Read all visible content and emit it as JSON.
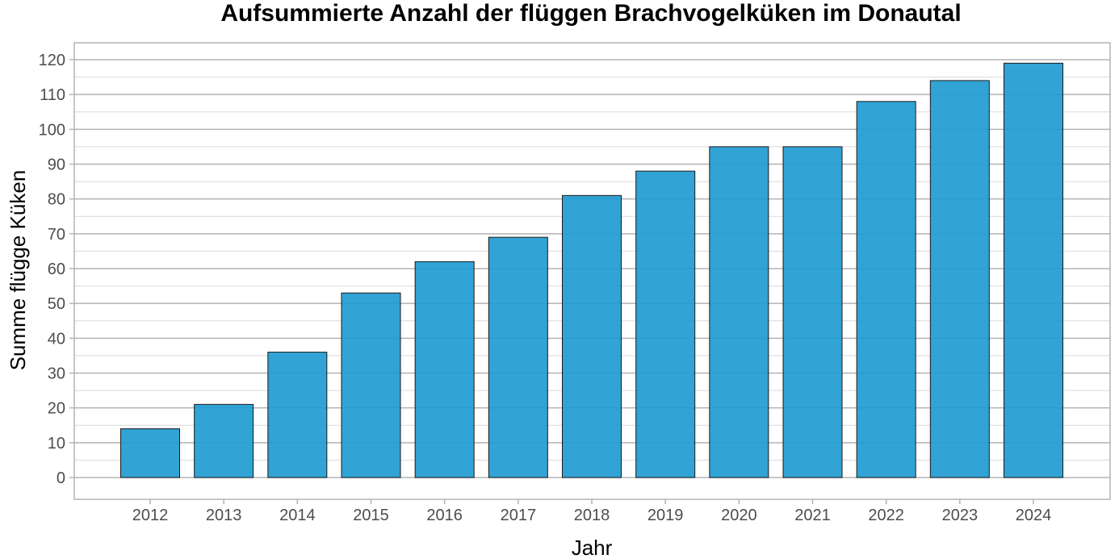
{
  "chart_data": {
    "type": "bar",
    "title": "Aufsummierte Anzahl der flüggen Brachvogelküken im Donautal",
    "xlabel": "Jahr",
    "ylabel": "Summe flügge Küken",
    "categories": [
      "2012",
      "2013",
      "2014",
      "2015",
      "2016",
      "2017",
      "2018",
      "2019",
      "2020",
      "2021",
      "2022",
      "2023",
      "2024"
    ],
    "values": [
      14,
      21,
      36,
      53,
      62,
      69,
      81,
      88,
      95,
      95,
      108,
      114,
      119
    ],
    "ylim": [
      0,
      120
    ],
    "yticks": [
      0,
      10,
      20,
      30,
      40,
      50,
      60,
      70,
      80,
      90,
      100,
      110,
      120
    ],
    "grid": true,
    "bar_color": "#1f9bd1",
    "bar_edge_color": "#1a1a1a",
    "panel_border_color": "#b3b3b3",
    "grid_major_color": "#b3b3b3",
    "grid_minor_color": "#d9d9d9"
  }
}
